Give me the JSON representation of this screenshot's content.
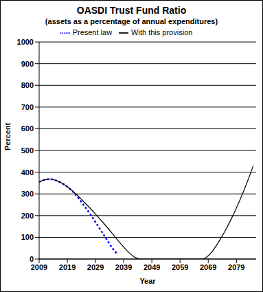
{
  "chart_data": {
    "type": "line",
    "title": "OASDI Trust Fund Ratio",
    "subtitle": "(assets as a percentage of annual expenditures)",
    "x_label": "Year",
    "y_label": "Percent",
    "x": [
      2009,
      2011,
      2013,
      2015,
      2017,
      2019,
      2021,
      2023,
      2025,
      2027,
      2029,
      2031,
      2033,
      2035,
      2037,
      2039,
      2041,
      2043,
      2045,
      2047,
      2049,
      2051,
      2053,
      2055,
      2057,
      2059,
      2061,
      2063,
      2065,
      2067,
      2069,
      2071,
      2073,
      2075,
      2077,
      2079,
      2081,
      2083,
      2085
    ],
    "series": [
      {
        "name": "Present law",
        "color": "#0000ff",
        "line_style": "dotted",
        "values": [
          355,
          365,
          368,
          362,
          350,
          333,
          310,
          280,
          245,
          210,
          170,
          130,
          90,
          50,
          20,
          null,
          null,
          null,
          null,
          null,
          null,
          null,
          null,
          null,
          null,
          null,
          null,
          null,
          null,
          null,
          null,
          null,
          null,
          null,
          null,
          null,
          null,
          null,
          null
        ]
      },
      {
        "name": "With this provision",
        "color": "#000000",
        "line_style": "solid",
        "values": [
          355,
          365,
          368,
          362,
          350,
          333,
          312,
          288,
          262,
          235,
          207,
          178,
          148,
          117,
          85,
          55,
          28,
          8,
          0,
          0,
          0,
          0,
          0,
          0,
          0,
          0,
          0,
          0,
          0,
          0,
          15,
          45,
          85,
          130,
          180,
          235,
          295,
          360,
          430
        ]
      }
    ],
    "xlim": [
      2009,
      2086
    ],
    "xticks": [
      2009,
      2019,
      2029,
      2039,
      2049,
      2059,
      2069,
      2079
    ],
    "ylim": [
      0,
      1000
    ],
    "yticks": [
      0,
      100,
      200,
      300,
      400,
      500,
      600,
      700,
      800,
      900,
      1000
    ],
    "grid": true,
    "legend": "top"
  }
}
